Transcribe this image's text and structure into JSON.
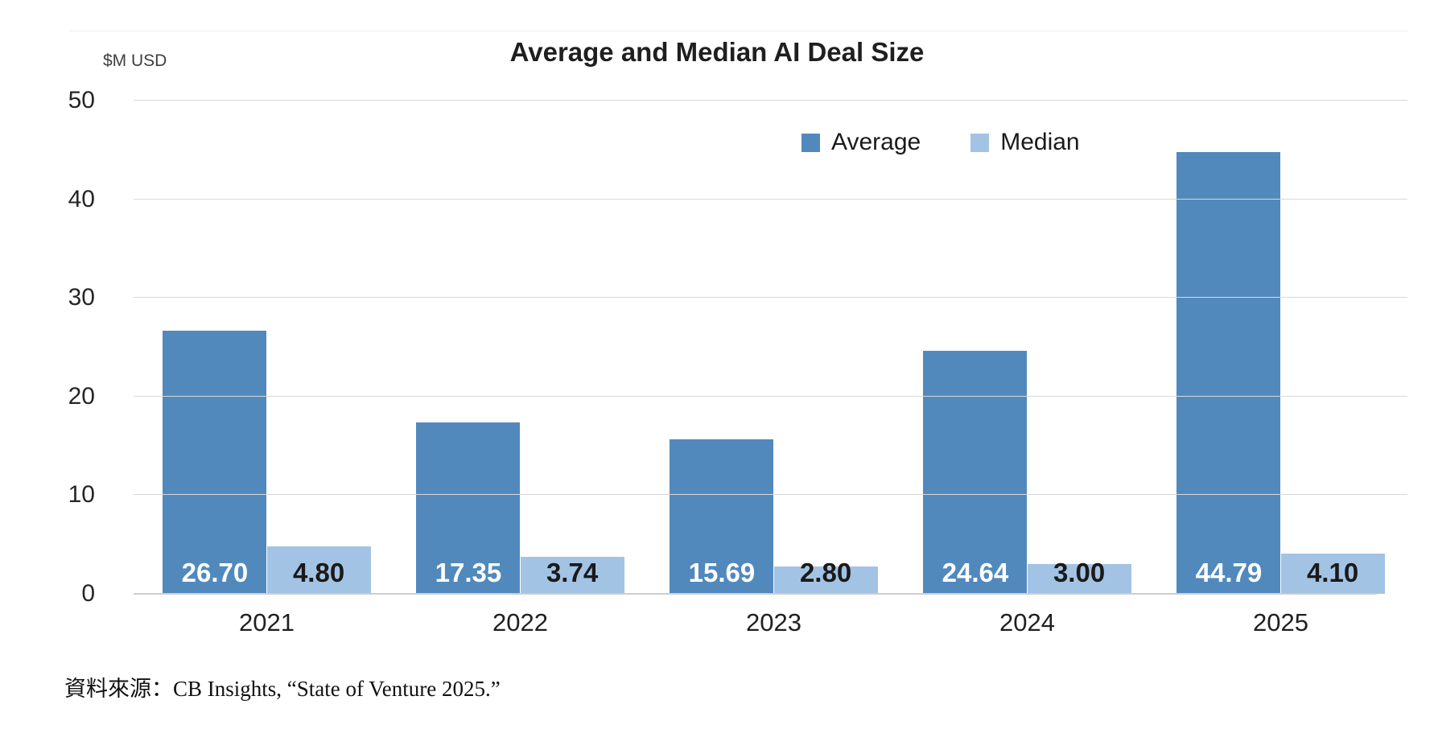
{
  "title": "Average and Median AI Deal Size",
  "y_axis": {
    "unit_label": "$M USD",
    "ticks": [
      0,
      10,
      20,
      30,
      40,
      50
    ]
  },
  "legend": {
    "items": [
      {
        "label": "Average"
      },
      {
        "label": "Median"
      }
    ]
  },
  "source_note": "資料來源：CB Insights, “State of Venture 2025.”",
  "colors": {
    "average_bar": "#5189BD",
    "median_bar": "#A3C3E4",
    "gridline": "#D9D9D9",
    "axis_line": "#CDCDCD",
    "average_value_label": "#FFFFFF",
    "median_value_label": "#1A1A1A"
  },
  "chart_data": {
    "type": "bar",
    "title": "Average and Median AI Deal Size",
    "xlabel": "",
    "ylabel": "$M USD",
    "categories": [
      "2021",
      "2022",
      "2023",
      "2024",
      "2025"
    ],
    "series": [
      {
        "name": "Average",
        "color": "#5189BD",
        "label_color": "#FFFFFF",
        "values": [
          26.7,
          17.35,
          15.69,
          24.64,
          44.79
        ],
        "labels": [
          "26.70",
          "17.35",
          "15.69",
          "24.64",
          "44.79"
        ]
      },
      {
        "name": "Median",
        "color": "#A3C3E4",
        "label_color": "#1A1A1A",
        "values": [
          4.8,
          3.74,
          2.8,
          3.0,
          4.1
        ],
        "labels": [
          "4.80",
          "3.74",
          "2.80",
          "3.00",
          "4.10"
        ]
      }
    ],
    "ylim": [
      0,
      50
    ],
    "ytick_step": 10,
    "grid": true,
    "legend_position": "top-right",
    "value_labels_shown": true,
    "source": "CB Insights, “State of Venture 2025.”"
  }
}
